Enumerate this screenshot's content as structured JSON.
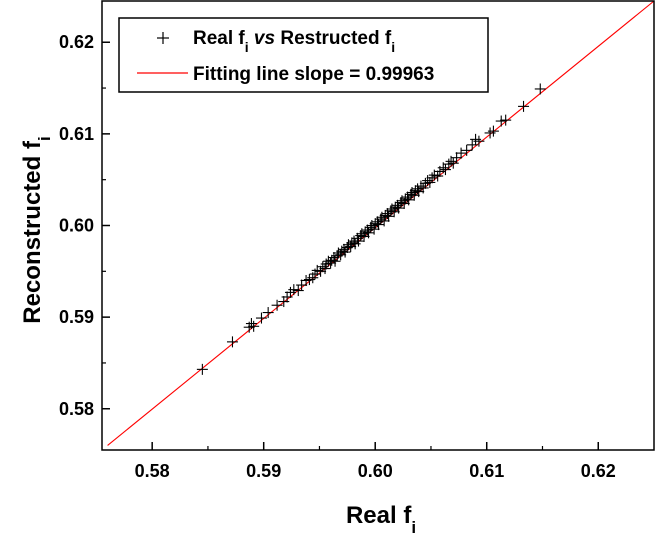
{
  "chart_data": {
    "type": "scatter",
    "xlabel": "Real f",
    "xlabel_sub": "i",
    "ylabel": "Reconstructed f",
    "ylabel_sub": "i",
    "xlim": [
      0.5755,
      0.625
    ],
    "ylim": [
      0.5755,
      0.6245
    ],
    "xticks": [
      {
        "value": 0.58,
        "label": "0.58"
      },
      {
        "value": 0.59,
        "label": "0.59"
      },
      {
        "value": 0.6,
        "label": "0.60"
      },
      {
        "value": 0.61,
        "label": "0.61"
      },
      {
        "value": 0.62,
        "label": "0.62"
      }
    ],
    "yticks": [
      {
        "value": 0.58,
        "label": "0.58"
      },
      {
        "value": 0.59,
        "label": "0.59"
      },
      {
        "value": 0.6,
        "label": "0.60"
      },
      {
        "value": 0.61,
        "label": "0.61"
      },
      {
        "value": 0.62,
        "label": "0.62"
      }
    ],
    "legend": {
      "placement": "top-left",
      "entries": [
        {
          "parts": [
            {
              "text": "Real f",
              "style": "normal"
            },
            {
              "text": "i",
              "style": "sub"
            },
            {
              "text": " ",
              "style": "normal"
            },
            {
              "text": "vs",
              "style": "italic"
            },
            {
              "text": " Restructed f",
              "style": "normal"
            },
            {
              "text": "i",
              "style": "sub"
            }
          ],
          "marker": "cross",
          "color": "#000000"
        },
        {
          "parts": [
            {
              "text": "Fitting line slope = 0.99963",
              "style": "normal"
            }
          ],
          "marker": "line",
          "color": "#ff0000"
        }
      ]
    },
    "series": [
      {
        "marker": "cross",
        "color": "#000000",
        "points": [
          [
            0.5845,
            0.5843
          ],
          [
            0.5872,
            0.5873
          ],
          [
            0.5887,
            0.5889
          ],
          [
            0.5889,
            0.5893
          ],
          [
            0.5891,
            0.589
          ],
          [
            0.5898,
            0.5899
          ],
          [
            0.5904,
            0.5905
          ],
          [
            0.5912,
            0.5913
          ],
          [
            0.5918,
            0.5917
          ],
          [
            0.5921,
            0.5922
          ],
          [
            0.5924,
            0.5927
          ],
          [
            0.5927,
            0.593
          ],
          [
            0.5931,
            0.5929
          ],
          [
            0.5934,
            0.5935
          ],
          [
            0.5938,
            0.594
          ],
          [
            0.5941,
            0.5941
          ],
          [
            0.5944,
            0.5943
          ],
          [
            0.5946,
            0.5947
          ],
          [
            0.5948,
            0.5951
          ],
          [
            0.5951,
            0.595
          ],
          [
            0.5953,
            0.5955
          ],
          [
            0.5955,
            0.5953
          ],
          [
            0.5956,
            0.5958
          ],
          [
            0.5958,
            0.5961
          ],
          [
            0.596,
            0.5959
          ],
          [
            0.5961,
            0.5962
          ],
          [
            0.5963,
            0.5965
          ],
          [
            0.5964,
            0.5961
          ],
          [
            0.5966,
            0.5967
          ],
          [
            0.5967,
            0.597
          ],
          [
            0.5969,
            0.5968
          ],
          [
            0.597,
            0.5972
          ],
          [
            0.5972,
            0.5974
          ],
          [
            0.5973,
            0.5971
          ],
          [
            0.5975,
            0.5976
          ],
          [
            0.5976,
            0.5979
          ],
          [
            0.5978,
            0.5977
          ],
          [
            0.5979,
            0.5981
          ],
          [
            0.5981,
            0.5983
          ],
          [
            0.5982,
            0.598
          ],
          [
            0.5984,
            0.5986
          ],
          [
            0.5985,
            0.5983
          ],
          [
            0.5987,
            0.5989
          ],
          [
            0.5988,
            0.5991
          ],
          [
            0.599,
            0.5988
          ],
          [
            0.5991,
            0.5993
          ],
          [
            0.5993,
            0.5995
          ],
          [
            0.5994,
            0.5992
          ],
          [
            0.5996,
            0.5998
          ],
          [
            0.5997,
            0.6
          ],
          [
            0.5999,
            0.5996
          ],
          [
            0.6,
            0.6002
          ],
          [
            0.6002,
            0.6004
          ],
          [
            0.6003,
            0.6001
          ],
          [
            0.6005,
            0.6007
          ],
          [
            0.6006,
            0.6009
          ],
          [
            0.6008,
            0.6005
          ],
          [
            0.6009,
            0.6011
          ],
          [
            0.6011,
            0.6013
          ],
          [
            0.6012,
            0.601
          ],
          [
            0.6014,
            0.6016
          ],
          [
            0.6015,
            0.6018
          ],
          [
            0.6017,
            0.6015
          ],
          [
            0.6018,
            0.602
          ],
          [
            0.602,
            0.6022
          ],
          [
            0.6021,
            0.6019
          ],
          [
            0.6023,
            0.6025
          ],
          [
            0.6024,
            0.6027
          ],
          [
            0.6026,
            0.6024
          ],
          [
            0.6027,
            0.6029
          ],
          [
            0.6029,
            0.6031
          ],
          [
            0.603,
            0.6028
          ],
          [
            0.6032,
            0.6034
          ],
          [
            0.6033,
            0.6036
          ],
          [
            0.6035,
            0.6033
          ],
          [
            0.6036,
            0.6038
          ],
          [
            0.6038,
            0.604
          ],
          [
            0.6039,
            0.6037
          ],
          [
            0.6041,
            0.6043
          ],
          [
            0.6043,
            0.6041
          ],
          [
            0.6045,
            0.6046
          ],
          [
            0.6047,
            0.6049
          ],
          [
            0.6049,
            0.6047
          ],
          [
            0.6051,
            0.6052
          ],
          [
            0.6053,
            0.6055
          ],
          [
            0.6056,
            0.6054
          ],
          [
            0.6058,
            0.6059
          ],
          [
            0.6061,
            0.6063
          ],
          [
            0.6063,
            0.6061
          ],
          [
            0.6066,
            0.6067
          ],
          [
            0.6068,
            0.607
          ],
          [
            0.607,
            0.6068
          ],
          [
            0.6073,
            0.6074
          ],
          [
            0.6077,
            0.6079
          ],
          [
            0.6082,
            0.6082
          ],
          [
            0.6087,
            0.6088
          ],
          [
            0.609,
            0.6094
          ],
          [
            0.6093,
            0.6092
          ],
          [
            0.6103,
            0.6101
          ],
          [
            0.6106,
            0.6103
          ],
          [
            0.6113,
            0.6114
          ],
          [
            0.6117,
            0.6115
          ],
          [
            0.6133,
            0.613
          ],
          [
            0.6148,
            0.6149
          ]
        ]
      }
    ],
    "fit_line": {
      "color": "#ff0000",
      "slope": 0.99963,
      "x_range": [
        0.576,
        0.625
      ],
      "y_range": [
        0.576,
        0.6245
      ]
    }
  }
}
